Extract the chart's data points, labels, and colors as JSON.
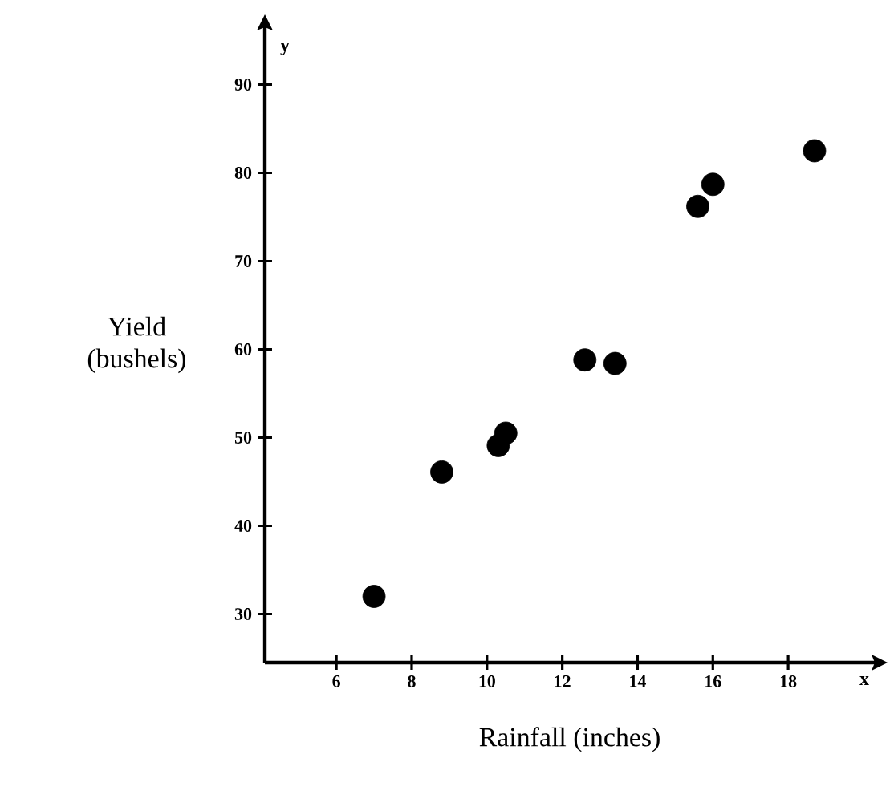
{
  "chart_data": {
    "type": "scatter",
    "xlabel": "Rainfall (inches)",
    "ylabel": "Yield (bushels)",
    "annotations": [
      "x",
      "y"
    ],
    "x": [
      7.0,
      8.8,
      10.3,
      10.5,
      12.6,
      13.4,
      15.6,
      16.0,
      18.7
    ],
    "values": [
      32.0,
      46.1,
      49.1,
      50.5,
      58.8,
      58.4,
      76.2,
      78.7,
      82.5
    ],
    "color": "#000000",
    "marker": "circle",
    "xlim": [
      4.1,
      20.3
    ],
    "ylim": [
      24.5,
      96.5
    ],
    "xticks": [
      6,
      8,
      10,
      12,
      14,
      16,
      18
    ],
    "yticks": [
      30,
      40,
      50,
      60,
      70,
      80,
      90
    ],
    "grid": false
  }
}
